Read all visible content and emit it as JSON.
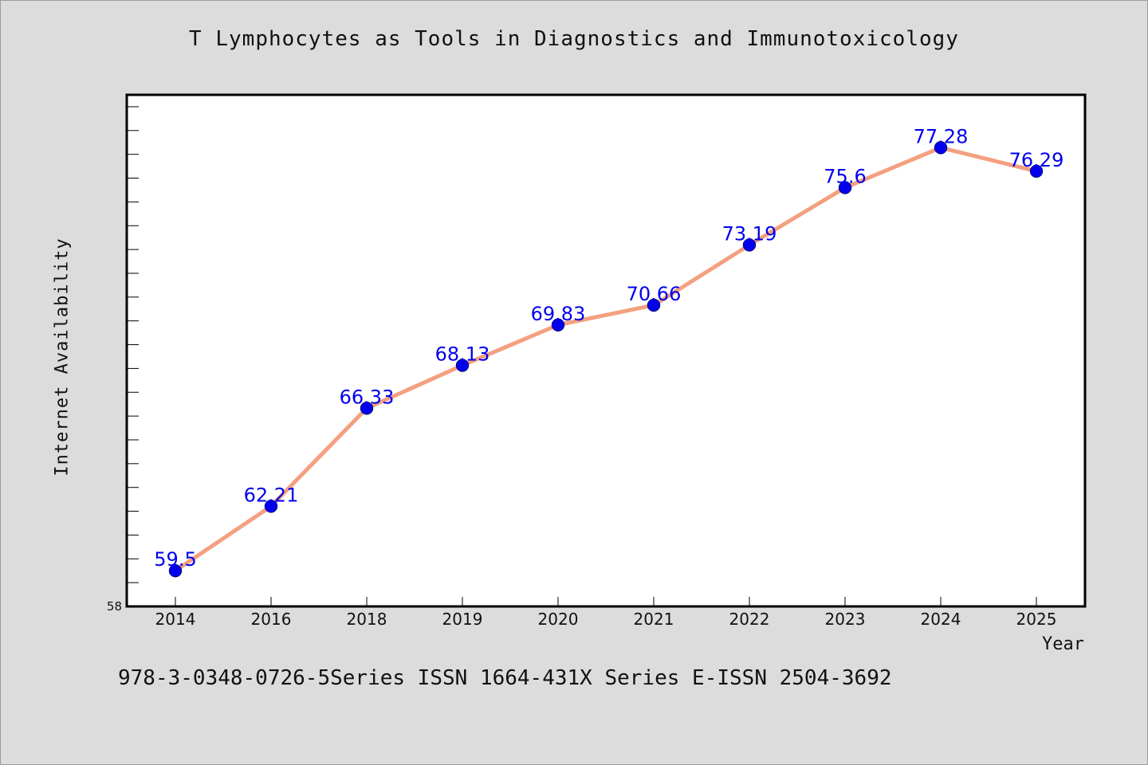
{
  "chart_data": {
    "type": "line",
    "title": "T Lymphocytes as Tools in Diagnostics and Immunotoxicology",
    "xlabel": "Year",
    "ylabel": "Internet Availability",
    "categories": [
      "2014",
      "2016",
      "2018",
      "2019",
      "2020",
      "2021",
      "2022",
      "2023",
      "2024",
      "2025"
    ],
    "series": [
      {
        "values": [
          59.5,
          62.21,
          66.33,
          68.13,
          69.83,
          70.66,
          73.19,
          75.6,
          77.28,
          76.29
        ]
      }
    ],
    "data_labels": [
      "59.5",
      "62.21",
      "66.33",
      "68.13",
      "69.83",
      "70.66",
      "73.19",
      "75.6",
      "77.28",
      "76.29"
    ],
    "ylim": [
      58,
      79.5
    ],
    "ytick_labels": [
      "58"
    ],
    "grid": false,
    "line_color": "#f4a080",
    "marker_color": "#0000ee",
    "label_color": "#0000ee"
  },
  "footer": "978-3-0348-0726-5Series ISSN 1664-431X Series E-ISSN 2504-3692"
}
